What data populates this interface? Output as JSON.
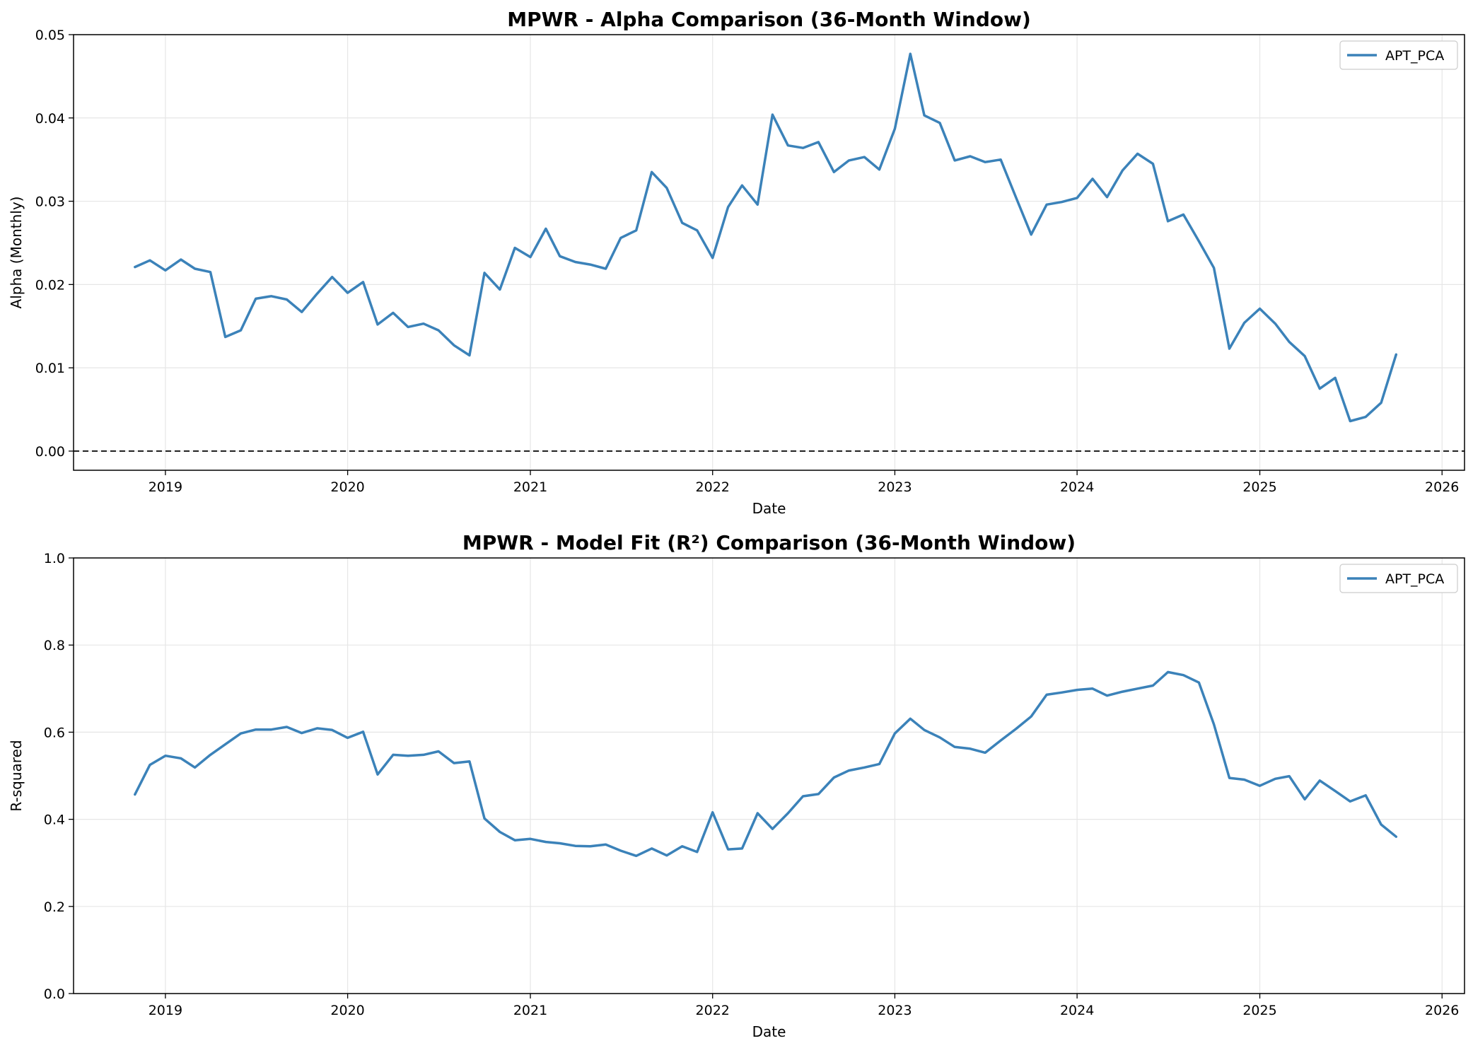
{
  "chart_data": [
    {
      "type": "line",
      "title": "MPWR - Alpha Comparison (36-Month Window)",
      "xlabel": "Date",
      "ylabel": "Alpha (Monthly)",
      "xlim": [
        "2018-07-01",
        "2026-02-15"
      ],
      "ylim": [
        -0.0023,
        0.05
      ],
      "yticks": [
        0.0,
        0.01,
        0.02,
        0.03,
        0.04,
        0.05
      ],
      "ytick_labels": [
        "0.00",
        "0.01",
        "0.02",
        "0.03",
        "0.04",
        "0.05"
      ],
      "xticks": [
        "2019-01-01",
        "2020-01-01",
        "2021-01-01",
        "2022-01-01",
        "2023-01-01",
        "2024-01-01",
        "2025-01-01",
        "2026-01-01"
      ],
      "xtick_labels": [
        "2019",
        "2020",
        "2021",
        "2022",
        "2023",
        "2024",
        "2025",
        "2026"
      ],
      "grid": true,
      "legend": "top-right",
      "hline": {
        "y": 0,
        "style": "dashed",
        "color": "#000000"
      },
      "series_color": "#3b82b9",
      "x": [
        "2018-11",
        "2018-12",
        "2019-01",
        "2019-02",
        "2019-03",
        "2019-04",
        "2019-05",
        "2019-06",
        "2019-07",
        "2019-08",
        "2019-09",
        "2019-10",
        "2019-11",
        "2019-12",
        "2020-01",
        "2020-02",
        "2020-03",
        "2020-04",
        "2020-05",
        "2020-06",
        "2020-07",
        "2020-08",
        "2020-09",
        "2020-10",
        "2020-11",
        "2020-12",
        "2021-01",
        "2021-02",
        "2021-03",
        "2021-04",
        "2021-05",
        "2021-06",
        "2021-07",
        "2021-08",
        "2021-09",
        "2021-10",
        "2021-11",
        "2021-12",
        "2022-01",
        "2022-02",
        "2022-03",
        "2022-04",
        "2022-05",
        "2022-06",
        "2022-07",
        "2022-08",
        "2022-09",
        "2022-10",
        "2022-11",
        "2022-12",
        "2023-01",
        "2023-02",
        "2023-03",
        "2023-04",
        "2023-05",
        "2023-06",
        "2023-07",
        "2023-08",
        "2023-09",
        "2023-10",
        "2023-11",
        "2023-12",
        "2024-01",
        "2024-02",
        "2024-03",
        "2024-04",
        "2024-05",
        "2024-06",
        "2024-07",
        "2024-08",
        "2024-09",
        "2024-10",
        "2024-11",
        "2024-12",
        "2025-01",
        "2025-02",
        "2025-03",
        "2025-04",
        "2025-05",
        "2025-06",
        "2025-07",
        "2025-08",
        "2025-09",
        "2025-10"
      ],
      "series": [
        {
          "name": "APT_PCA",
          "values": [
            0.0221,
            0.0229,
            0.0217,
            0.023,
            0.0219,
            0.0215,
            0.0137,
            0.0145,
            0.0183,
            0.0186,
            0.0182,
            0.0167,
            0.0189,
            0.0209,
            0.019,
            0.0203,
            0.0152,
            0.0166,
            0.0149,
            0.0153,
            0.0145,
            0.0127,
            0.0115,
            0.0214,
            0.0194,
            0.0244,
            0.0233,
            0.0267,
            0.0234,
            0.0227,
            0.0224,
            0.0219,
            0.0256,
            0.0265,
            0.0335,
            0.0316,
            0.0274,
            0.0265,
            0.0232,
            0.0293,
            0.0319,
            0.0296,
            0.0404,
            0.0367,
            0.0364,
            0.0371,
            0.0335,
            0.0349,
            0.0353,
            0.0338,
            0.0387,
            0.0477,
            0.0403,
            0.0394,
            0.0349,
            0.0354,
            0.0347,
            0.035,
            0.0304,
            0.026,
            0.0296,
            0.0299,
            0.0304,
            0.0327,
            0.0305,
            0.0337,
            0.0357,
            0.0345,
            0.0276,
            0.0284,
            0.0252,
            0.022,
            0.0123,
            0.0154,
            0.0171,
            0.0153,
            0.0131,
            0.0114,
            0.0075,
            0.0088,
            0.0036,
            0.0041,
            0.0058,
            0.0116
          ]
        }
      ]
    },
    {
      "type": "line",
      "title": "MPWR - Model Fit (R²) Comparison (36-Month Window)",
      "xlabel": "Date",
      "ylabel": "R-squared",
      "xlim": [
        "2018-07-01",
        "2026-02-15"
      ],
      "ylim": [
        0,
        1.0
      ],
      "yticks": [
        0.0,
        0.2,
        0.4,
        0.6,
        0.8,
        1.0
      ],
      "ytick_labels": [
        "0.0",
        "0.2",
        "0.4",
        "0.6",
        "0.8",
        "1.0"
      ],
      "xticks": [
        "2019-01-01",
        "2020-01-01",
        "2021-01-01",
        "2022-01-01",
        "2023-01-01",
        "2024-01-01",
        "2025-01-01",
        "2026-01-01"
      ],
      "xtick_labels": [
        "2019",
        "2020",
        "2021",
        "2022",
        "2023",
        "2024",
        "2025",
        "2026"
      ],
      "grid": true,
      "legend": "top-right",
      "series_color": "#3b82b9",
      "x": [
        "2018-11",
        "2018-12",
        "2019-01",
        "2019-02",
        "2019-03",
        "2019-04",
        "2019-05",
        "2019-06",
        "2019-07",
        "2019-08",
        "2019-09",
        "2019-10",
        "2019-11",
        "2019-12",
        "2020-01",
        "2020-02",
        "2020-03",
        "2020-04",
        "2020-05",
        "2020-06",
        "2020-07",
        "2020-08",
        "2020-09",
        "2020-10",
        "2020-11",
        "2020-12",
        "2021-01",
        "2021-02",
        "2021-03",
        "2021-04",
        "2021-05",
        "2021-06",
        "2021-07",
        "2021-08",
        "2021-09",
        "2021-10",
        "2021-11",
        "2021-12",
        "2022-01",
        "2022-02",
        "2022-03",
        "2022-04",
        "2022-05",
        "2022-06",
        "2022-07",
        "2022-08",
        "2022-09",
        "2022-10",
        "2022-11",
        "2022-12",
        "2023-01",
        "2023-02",
        "2023-03",
        "2023-04",
        "2023-05",
        "2023-06",
        "2023-07",
        "2023-08",
        "2023-09",
        "2023-10",
        "2023-11",
        "2023-12",
        "2024-01",
        "2024-02",
        "2024-03",
        "2024-04",
        "2024-05",
        "2024-06",
        "2024-07",
        "2024-08",
        "2024-09",
        "2024-10",
        "2024-11",
        "2024-12",
        "2025-01",
        "2025-02",
        "2025-03",
        "2025-04",
        "2025-05",
        "2025-06",
        "2025-07",
        "2025-08",
        "2025-09",
        "2025-10"
      ],
      "series": [
        {
          "name": "APT_PCA",
          "values": [
            0.457,
            0.525,
            0.546,
            0.54,
            0.519,
            0.548,
            0.572,
            0.597,
            0.606,
            0.606,
            0.612,
            0.598,
            0.609,
            0.605,
            0.587,
            0.601,
            0.503,
            0.548,
            0.546,
            0.548,
            0.556,
            0.529,
            0.533,
            0.402,
            0.371,
            0.352,
            0.355,
            0.348,
            0.345,
            0.339,
            0.338,
            0.342,
            0.328,
            0.316,
            0.333,
            0.317,
            0.338,
            0.325,
            0.416,
            0.331,
            0.333,
            0.414,
            0.378,
            0.414,
            0.453,
            0.458,
            0.496,
            0.512,
            0.519,
            0.527,
            0.597,
            0.631,
            0.605,
            0.588,
            0.566,
            0.562,
            0.553,
            0.581,
            0.608,
            0.636,
            0.686,
            0.691,
            0.697,
            0.7,
            0.684,
            0.693,
            0.7,
            0.707,
            0.738,
            0.731,
            0.714,
            0.618,
            0.495,
            0.491,
            0.477,
            0.493,
            0.499,
            0.446,
            0.489,
            0.465,
            0.441,
            0.455,
            0.388,
            0.36
          ]
        }
      ]
    }
  ]
}
